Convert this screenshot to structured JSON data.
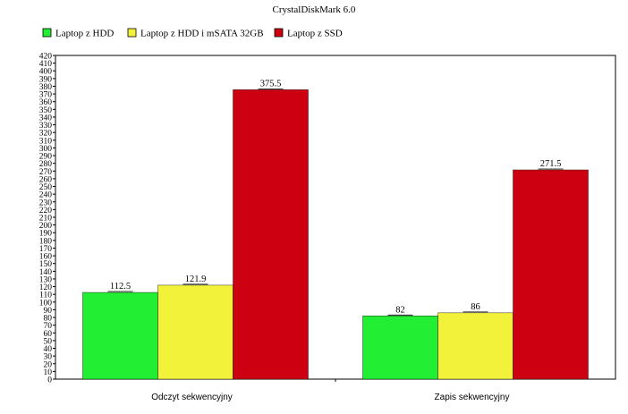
{
  "chart_data": {
    "type": "bar",
    "title": "CrystalDiskMark 6.0",
    "categories": [
      "Odczyt sekwencyjny",
      "Zapis sekwencyjny"
    ],
    "series": [
      {
        "name": "Laptop z HDD",
        "values": [
          112.5,
          82
        ],
        "labels": [
          "112.5",
          "82"
        ],
        "color": "#22ee33"
      },
      {
        "name": "Laptop z HDD i mSATA 32GB",
        "values": [
          121.9,
          86
        ],
        "labels": [
          "121.9",
          "86"
        ],
        "color": "#f2f23a"
      },
      {
        "name": "Laptop z SSD",
        "values": [
          375.5,
          271.5
        ],
        "labels": [
          "375.5",
          "271.5"
        ],
        "color": "#cc0011"
      }
    ],
    "ylim": [
      0,
      420
    ],
    "ytick_step": 10,
    "xlabel": "",
    "ylabel": "",
    "legend": "top-left",
    "grid": false
  }
}
